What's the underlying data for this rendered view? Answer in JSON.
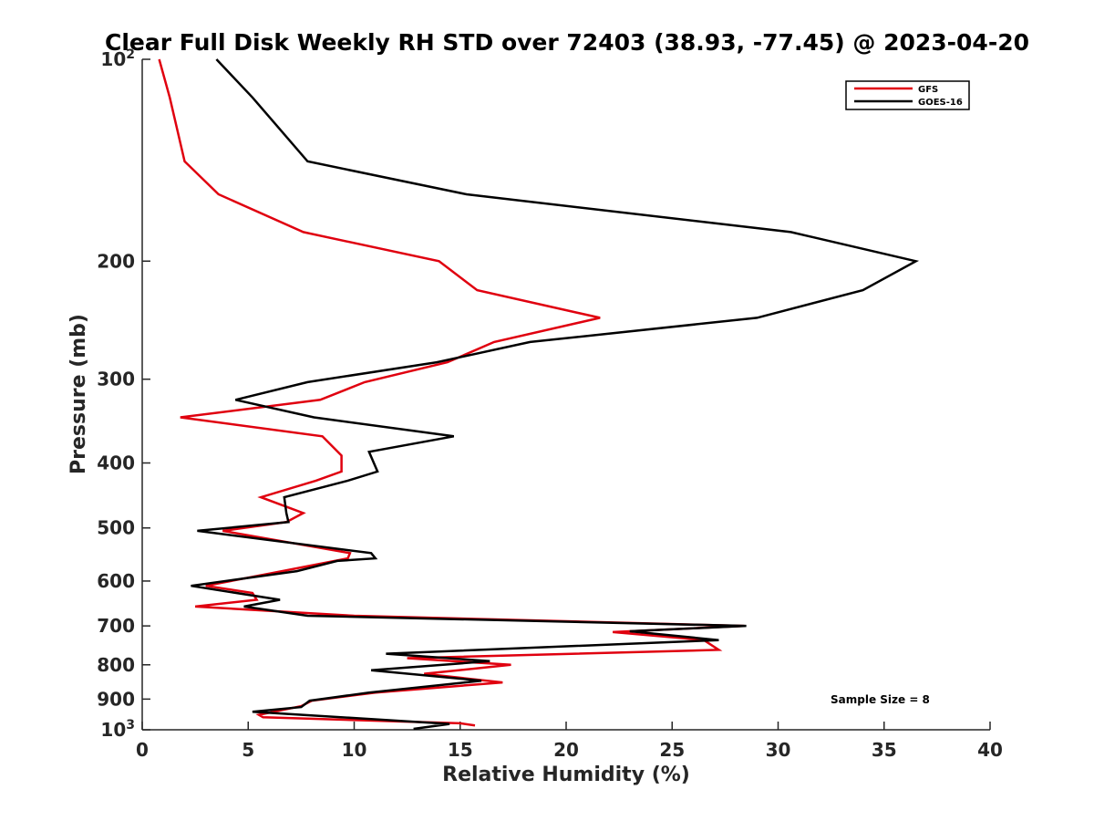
{
  "chart_data": {
    "type": "line",
    "title": "Clear Full Disk Weekly RH STD over 72403 (38.93, -77.45) @ 2023-04-20",
    "xlabel": "Relative Humidity (%)",
    "ylabel": "Pressure (mb)",
    "xlim": [
      0,
      40
    ],
    "ylim": [
      100,
      1000
    ],
    "yscale": "log",
    "y_reversed": true,
    "grid": false,
    "legend_position": "top-right",
    "x_ticks": [
      "0",
      "5",
      "10",
      "15",
      "20",
      "25",
      "30",
      "35",
      "40"
    ],
    "y_ticks": [
      {
        "value": 100,
        "label": "10",
        "sup": "2"
      },
      {
        "value": 200,
        "label": "200",
        "sup": ""
      },
      {
        "value": 300,
        "label": "300",
        "sup": ""
      },
      {
        "value": 400,
        "label": "400",
        "sup": ""
      },
      {
        "value": 500,
        "label": "500",
        "sup": ""
      },
      {
        "value": 600,
        "label": "600",
        "sup": ""
      },
      {
        "value": 700,
        "label": "700",
        "sup": ""
      },
      {
        "value": 800,
        "label": "800",
        "sup": ""
      },
      {
        "value": 900,
        "label": "900",
        "sup": ""
      },
      {
        "value": 1000,
        "label": "10",
        "sup": "3"
      }
    ],
    "annotation": "Sample Size = 8",
    "series": [
      {
        "name": "GFS",
        "color": "#e0000f",
        "x": [
          0.8,
          1.3,
          2.0,
          3.6,
          7.6,
          14.0,
          15.8,
          21.6,
          16.6,
          14.4,
          10.5,
          8.4,
          1.8,
          8.5,
          9.4,
          9.4,
          8.2,
          5.6,
          7.6,
          6.8,
          3.8,
          9.8,
          9.7,
          6.6,
          3.0,
          5.2,
          5.4,
          2.5,
          10.0,
          28.4,
          22.2,
          26.5,
          27.2,
          12.5,
          17.4,
          13.3,
          17.0,
          11.0,
          8.0,
          7.5,
          5.5,
          5.7,
          15.0,
          15.7
        ],
        "y": [
          100,
          114,
          142,
          159,
          181,
          200,
          221,
          243,
          264,
          283,
          303,
          322,
          342,
          365,
          390,
          412,
          425,
          450,
          475,
          490,
          505,
          545,
          555,
          580,
          610,
          625,
          640,
          655,
          676,
          700,
          715,
          735,
          760,
          782,
          800,
          825,
          850,
          880,
          905,
          922,
          950,
          958,
          978,
          985
        ]
      },
      {
        "name": "GOES-16",
        "color": "#000000",
        "x": [
          3.5,
          5.2,
          7.8,
          15.3,
          30.6,
          36.5,
          34.0,
          29.0,
          18.3,
          13.9,
          7.8,
          4.4,
          8.1,
          14.7,
          10.7,
          11.1,
          9.7,
          6.7,
          6.8,
          6.9,
          2.6,
          10.8,
          11.0,
          9.2,
          7.3,
          2.3,
          6.5,
          4.8,
          7.8,
          28.5,
          23.0,
          27.2,
          11.5,
          16.4,
          10.8,
          16.0,
          10.7,
          7.9,
          7.5,
          5.2,
          14.5,
          12.8
        ],
        "y": [
          100,
          114,
          142,
          159,
          181,
          200,
          221,
          243,
          264,
          283,
          303,
          322,
          342,
          365,
          385,
          412,
          425,
          450,
          475,
          490,
          505,
          545,
          555,
          560,
          580,
          610,
          640,
          655,
          676,
          700,
          713,
          735,
          770,
          790,
          815,
          845,
          880,
          905,
          925,
          940,
          980,
          997
        ]
      }
    ]
  }
}
